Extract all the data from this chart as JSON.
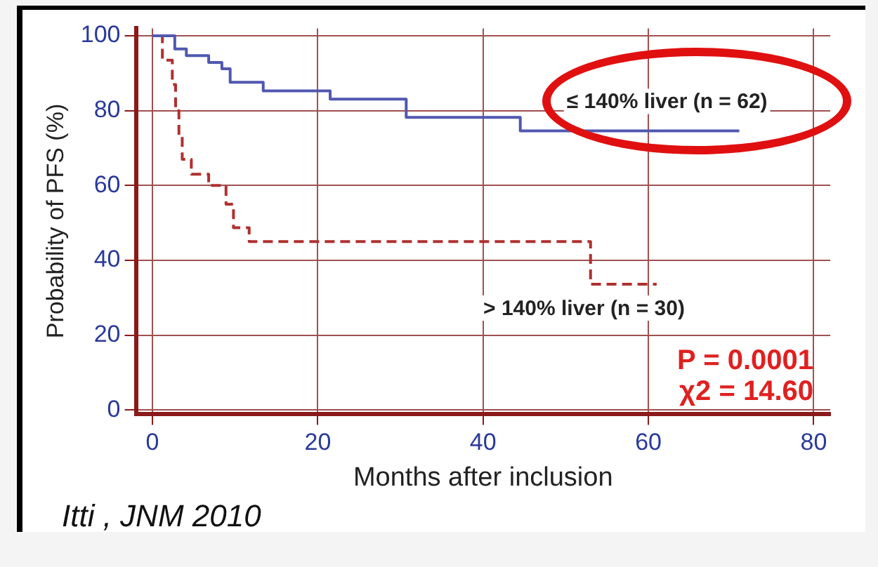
{
  "chart_data": {
    "type": "step",
    "xlabel": "Months after inclusion",
    "ylabel": "Probability of PFS (%)",
    "xlim": [
      -2,
      82
    ],
    "ylim": [
      -1,
      102
    ],
    "xticks": [
      0,
      20,
      40,
      60,
      80
    ],
    "yticks": [
      0,
      20,
      40,
      60,
      80,
      100
    ],
    "grid": true,
    "legend": false,
    "annotations": [
      "P = 0.0001",
      "χ2 = 14.60",
      "Itti , JNM 2010"
    ],
    "series": [
      {
        "name": "≤ 140% liver (n = 62)",
        "color": "#5058b0",
        "line_style": "solid",
        "x": [
          0,
          2.1,
          2.7,
          4.1,
          6.8,
          8.4,
          9.4,
          13.4,
          21.5,
          30.7,
          44.5,
          71
        ],
        "values": [
          100,
          100,
          96.5,
          94.7,
          92.9,
          91.2,
          87.6,
          85.3,
          83.1,
          78.2,
          74.6,
          74.6
        ]
      },
      {
        "name": "> 140% liver (n = 30)",
        "color": "#b03030",
        "line_style": "dashed",
        "x": [
          0.9,
          1.2,
          2.4,
          2.8,
          3.2,
          3.6,
          4.7,
          6.8,
          8.9,
          9.8,
          11.7,
          53,
          61
        ],
        "values": [
          100,
          93.5,
          87,
          80,
          73,
          67,
          63,
          60,
          55,
          48.7,
          45,
          33.6,
          33.6
        ]
      }
    ]
  }
}
